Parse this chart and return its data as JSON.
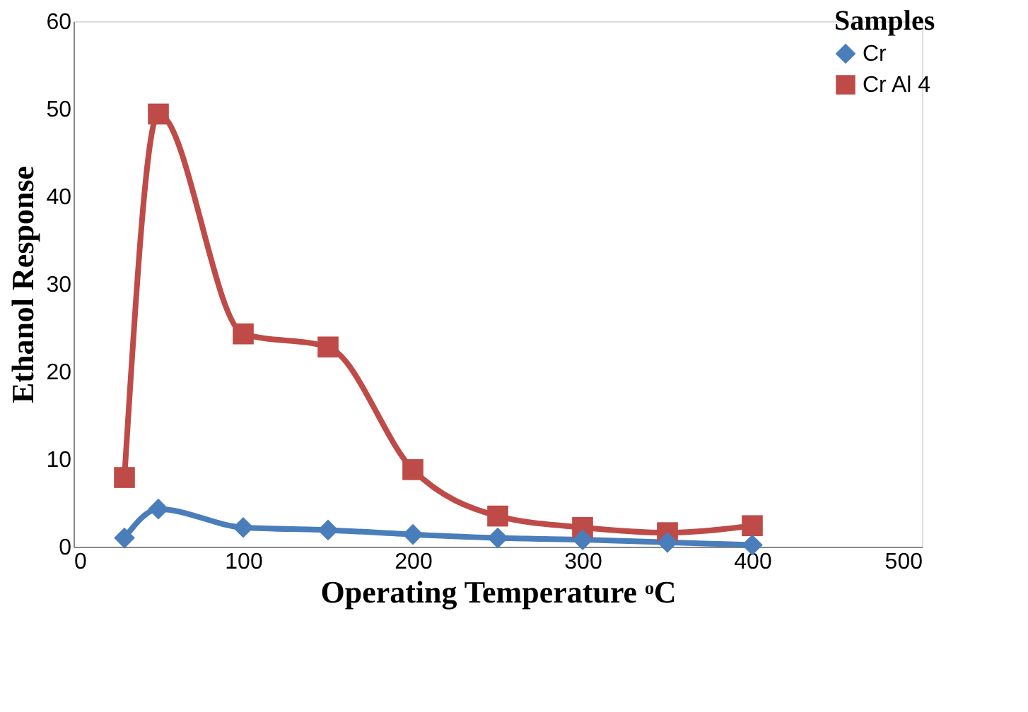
{
  "chart_data": {
    "type": "line",
    "xlabel": "Operating Temperature ᵒC",
    "ylabel": "Ethanol Response",
    "legend_title": "Samples",
    "legend": "top right",
    "grid": false,
    "xlim": [
      0,
      500
    ],
    "xticks": [
      0,
      100,
      200,
      300,
      400,
      500
    ],
    "ylim": [
      0,
      60
    ],
    "yticks": [
      0,
      10,
      20,
      30,
      40,
      50,
      60
    ],
    "x": [
      30,
      50,
      100,
      150,
      200,
      250,
      300,
      350,
      400
    ],
    "series": [
      {
        "name": "Cr",
        "color": "#4a7ebb",
        "marker": "diamond",
        "values": [
          1.0,
          4.3,
          2.2,
          1.9,
          1.4,
          1.0,
          0.8,
          0.5,
          0.2
        ]
      },
      {
        "name": "Cr Al 4",
        "color": "#be4b48",
        "marker": "square",
        "values": [
          7.9,
          49.4,
          24.3,
          22.8,
          8.8,
          3.5,
          2.2,
          1.6,
          2.4
        ]
      }
    ]
  }
}
